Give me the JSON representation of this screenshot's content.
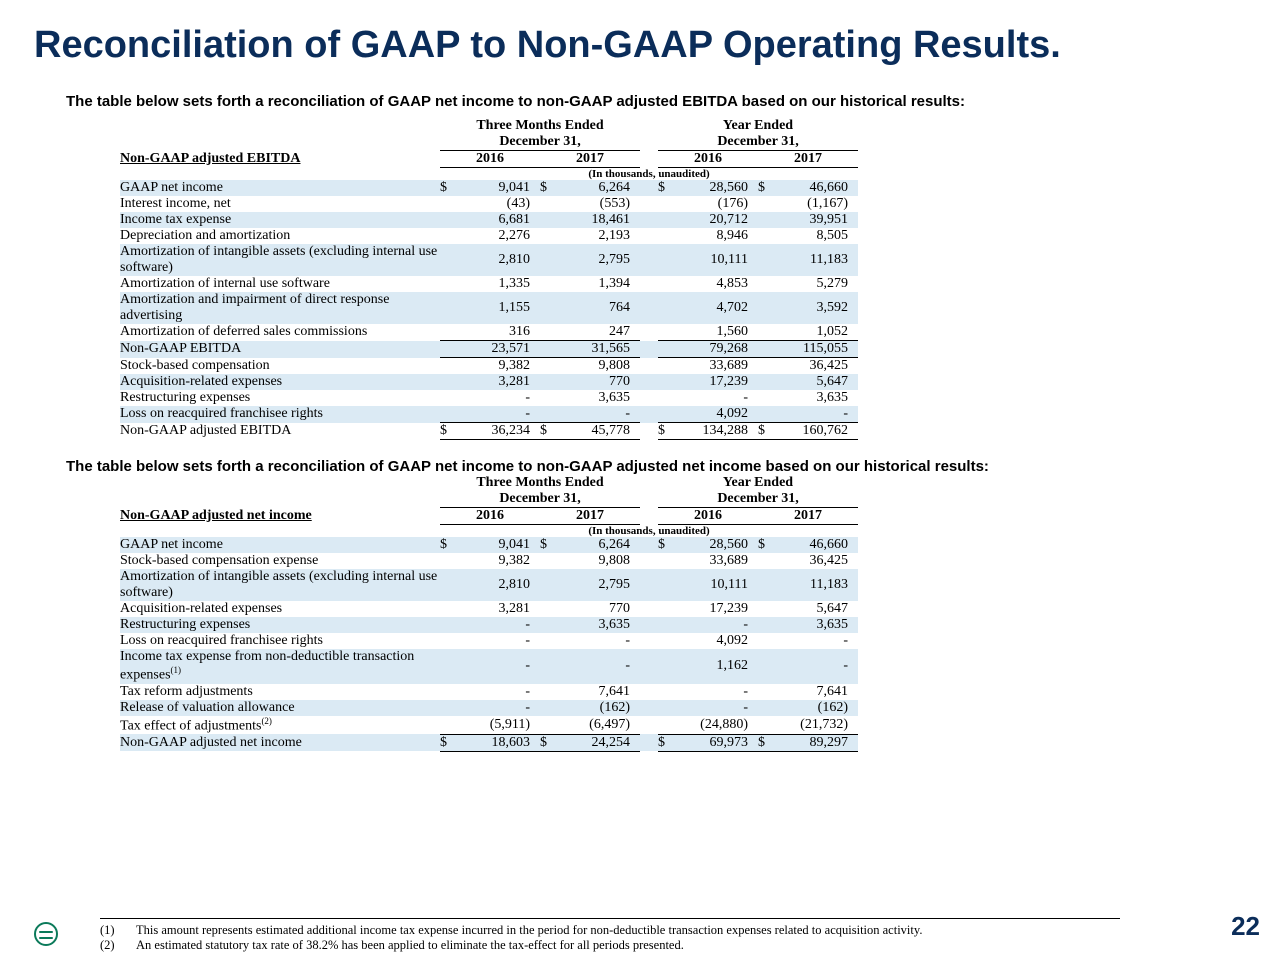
{
  "title": "Reconciliation of GAAP to Non-GAAP Operating Results.",
  "intro1": "The table below sets forth a reconciliation of GAAP net income to non-GAAP adjusted EBITDA based on our historical results:",
  "intro2": "The table below sets forth a reconciliation of GAAP net income to non-GAAP adjusted net income based on our historical results:",
  "pageNumber": "22",
  "periods": {
    "group1": "Three Months Ended",
    "group2": "Year Ended",
    "sub": "December 31,",
    "years": [
      "2016",
      "2017",
      "2016",
      "2017"
    ],
    "unitsNote": "(In thousands, unaudited)"
  },
  "table1": {
    "title": "Non-GAAP adjusted EBITDA",
    "rows": [
      {
        "label": "GAAP net income",
        "dollar": true,
        "stripe": true,
        "vals": [
          "9,041",
          "6,264",
          "28,560",
          "46,660"
        ]
      },
      {
        "label": "Interest income, net",
        "vals": [
          "(43)",
          "(553)",
          "(176)",
          "(1,167)"
        ]
      },
      {
        "label": "Income tax expense",
        "stripe": true,
        "vals": [
          "6,681",
          "18,461",
          "20,712",
          "39,951"
        ]
      },
      {
        "label": "Depreciation and amortization",
        "vals": [
          "2,276",
          "2,193",
          "8,946",
          "8,505"
        ]
      },
      {
        "label": "Amortization of intangible assets (excluding internal use software)",
        "stripe": true,
        "vals": [
          "2,810",
          "2,795",
          "10,111",
          "11,183"
        ]
      },
      {
        "label": "Amortization of internal use software",
        "vals": [
          "1,335",
          "1,394",
          "4,853",
          "5,279"
        ]
      },
      {
        "label": "Amortization and impairment of direct response advertising",
        "stripe": true,
        "vals": [
          "1,155",
          "764",
          "4,702",
          "3,592"
        ]
      },
      {
        "label": "Amortization of deferred sales commissions",
        "underline": true,
        "vals": [
          "316",
          "247",
          "1,560",
          "1,052"
        ]
      },
      {
        "label": "Non-GAAP EBITDA",
        "stripe": true,
        "underline": true,
        "vals": [
          "23,571",
          "31,565",
          "79,268",
          "115,055"
        ]
      },
      {
        "label": "Stock-based compensation",
        "vals": [
          "9,382",
          "9,808",
          "33,689",
          "36,425"
        ]
      },
      {
        "label": "Acquisition-related expenses",
        "stripe": true,
        "vals": [
          "3,281",
          "770",
          "17,239",
          "5,647"
        ]
      },
      {
        "label": "Restructuring expenses",
        "vals": [
          "-",
          "3,635",
          "-",
          "3,635"
        ]
      },
      {
        "label": "Loss on reacquired franchisee rights",
        "stripe": true,
        "underline": true,
        "vals": [
          "-",
          "-",
          "4,092",
          "-"
        ]
      },
      {
        "label": "Non-GAAP adjusted EBITDA",
        "dollar": true,
        "underline": true,
        "vals": [
          "36,234",
          "45,778",
          "134,288",
          "160,762"
        ]
      }
    ]
  },
  "table2": {
    "title": "Non-GAAP adjusted net income",
    "rows": [
      {
        "label": "GAAP net income",
        "dollar": true,
        "stripe": true,
        "vals": [
          "9,041",
          "6,264",
          "28,560",
          "46,660"
        ]
      },
      {
        "label": "Stock-based compensation expense",
        "vals": [
          "9,382",
          "9,808",
          "33,689",
          "36,425"
        ]
      },
      {
        "label": "Amortization of intangible assets (excluding internal use software)",
        "stripe": true,
        "vals": [
          "2,810",
          "2,795",
          "10,111",
          "11,183"
        ]
      },
      {
        "label": "Acquisition-related expenses",
        "vals": [
          "3,281",
          "770",
          "17,239",
          "5,647"
        ]
      },
      {
        "label": "Restructuring expenses",
        "stripe": true,
        "vals": [
          "-",
          "3,635",
          "-",
          "3,635"
        ]
      },
      {
        "label": "Loss on reacquired franchisee rights",
        "vals": [
          "-",
          "-",
          "4,092",
          "-"
        ]
      },
      {
        "label": "Income tax expense from non-deductible transaction expenses",
        "sup": "(1)",
        "stripe": true,
        "vals": [
          "-",
          "-",
          "1,162",
          "-"
        ]
      },
      {
        "label": "Tax reform adjustments",
        "vals": [
          "-",
          "7,641",
          "-",
          "7,641"
        ]
      },
      {
        "label": "Release of valuation allowance",
        "stripe": true,
        "vals": [
          "-",
          "(162)",
          "-",
          "(162)"
        ]
      },
      {
        "label": "Tax effect of adjustments",
        "sup": "(2)",
        "underline": true,
        "vals": [
          "(5,911)",
          "(6,497)",
          "(24,880)",
          "(21,732)"
        ]
      },
      {
        "label": "Non-GAAP adjusted net income",
        "dollar": true,
        "stripe": true,
        "underline": true,
        "vals": [
          "18,603",
          "24,254",
          "69,973",
          "89,297"
        ]
      }
    ]
  },
  "footnotes": [
    {
      "n": "(1)",
      "t": "This amount represents estimated additional income tax expense incurred in the period for non-deductible transaction expenses related to acquisition activity."
    },
    {
      "n": "(2)",
      "t": "An estimated statutory tax rate of 38.2% has been applied to eliminate the tax-effect for all periods presented."
    }
  ],
  "colors": {
    "titleColor": "#0b2d5a",
    "stripeColor": "#dbeaf4",
    "background": "#ffffff",
    "textColor": "#000000",
    "logoColor": "#0b7a5a"
  },
  "layout": {
    "pageWidth": 1280,
    "pageHeight": 960,
    "colLabelWidth": 320,
    "colSymWidth": 20,
    "colValWidth": 80
  }
}
